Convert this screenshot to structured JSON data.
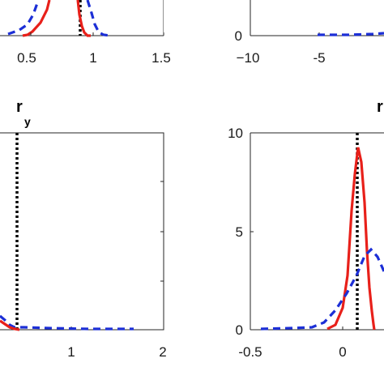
{
  "chart_data": [
    {
      "panel": "top-left",
      "type": "line",
      "xlim": [
        0.5,
        1.5
      ],
      "xticks": [
        "0.5",
        "1",
        "1.5"
      ],
      "yticks": [],
      "marker_x": 0.9,
      "series": [
        {
          "style": "solid",
          "color": "#e8201a",
          "points": [
            [
              0.5,
              0.0
            ],
            [
              0.6,
              0.05
            ],
            [
              0.63,
              0.25
            ],
            [
              0.65,
              0.55
            ],
            [
              0.67,
              1.0
            ],
            [
              0.68,
              1.2
            ]
          ]
        },
        {
          "style": "dashed",
          "color": "#1c2fd6",
          "points": [
            [
              0.4,
              0.0
            ],
            [
              0.52,
              0.12
            ],
            [
              0.58,
              0.4
            ],
            [
              0.62,
              0.9
            ],
            [
              0.64,
              1.2
            ]
          ]
        },
        {
          "style": "solid",
          "color": "#e8201a",
          "points": [
            [
              0.88,
              1.2
            ],
            [
              0.89,
              0.9
            ],
            [
              0.9,
              0.5
            ],
            [
              0.92,
              0.2
            ],
            [
              0.95,
              0.03
            ],
            [
              0.98,
              0.0
            ]
          ]
        },
        {
          "style": "dashed",
          "color": "#1c2fd6",
          "points": [
            [
              0.92,
              1.2
            ],
            [
              0.95,
              0.8
            ],
            [
              0.98,
              0.4
            ],
            [
              1.0,
              0.15
            ],
            [
              1.05,
              0.02
            ],
            [
              1.2,
              0.0
            ]
          ]
        }
      ]
    },
    {
      "panel": "top-right",
      "type": "line",
      "xlim": [
        -10,
        0
      ],
      "xticks": [
        "−10",
        "-5"
      ],
      "yticks": [
        "0"
      ],
      "series": [
        {
          "style": "dashed",
          "color": "#1c2fd6",
          "points": [
            [
              -6.0,
              0.0
            ],
            [
              -4.0,
              0.0
            ],
            [
              -2.0,
              0.0
            ],
            [
              -1.0,
              0.01
            ],
            [
              0.0,
              0.02
            ]
          ]
        }
      ]
    },
    {
      "panel": "bottom-left",
      "type": "line",
      "title": "r",
      "title_sub": "y",
      "xlim": [
        0,
        2
      ],
      "xticks": [
        "1",
        "2"
      ],
      "yticks": [],
      "marker_x": 0.4,
      "series": [
        {
          "style": "dashed",
          "color": "#1c2fd6",
          "points": [
            [
              0.0,
              0.25
            ],
            [
              0.1,
              0.2
            ],
            [
              0.2,
              0.1
            ],
            [
              0.3,
              0.04
            ],
            [
              0.5,
              0.02
            ],
            [
              0.8,
              0.01
            ],
            [
              1.2,
              0.0
            ],
            [
              1.65,
              0.0
            ]
          ]
        },
        {
          "style": "solid",
          "color": "#e8201a",
          "points": [
            [
              0.0,
              0.15
            ],
            [
              0.1,
              0.1
            ],
            [
              0.2,
              0.04
            ],
            [
              0.3,
              0.01
            ],
            [
              0.4,
              0.0
            ]
          ]
        }
      ]
    },
    {
      "panel": "bottom-right",
      "type": "line",
      "title": "r",
      "xlim": [
        -0.5,
        0.3
      ],
      "ylim": [
        0,
        10
      ],
      "xticks": [
        "-0.5",
        "0"
      ],
      "yticks": [
        "0",
        "5",
        "10"
      ],
      "marker_x": 0.1,
      "series": [
        {
          "style": "solid",
          "color": "#e8201a",
          "points": [
            [
              -0.1,
              0.0
            ],
            [
              -0.05,
              0.3
            ],
            [
              0.0,
              2.0
            ],
            [
              0.03,
              5.0
            ],
            [
              0.06,
              8.0
            ],
            [
              0.1,
              9.0
            ],
            [
              0.14,
              7.5
            ],
            [
              0.18,
              4.5
            ],
            [
              0.2,
              2.5
            ],
            [
              0.21,
              1.5
            ]
          ]
        },
        {
          "style": "dashed",
          "color": "#1c2fd6",
          "points": [
            [
              -0.5,
              0.0
            ],
            [
              -0.3,
              0.05
            ],
            [
              -0.2,
              0.3
            ],
            [
              -0.1,
              0.9
            ],
            [
              0.0,
              1.8
            ],
            [
              0.1,
              2.8
            ],
            [
              0.15,
              3.5
            ],
            [
              0.2,
              4.0
            ],
            [
              0.22,
              4.0
            ]
          ]
        }
      ]
    }
  ]
}
